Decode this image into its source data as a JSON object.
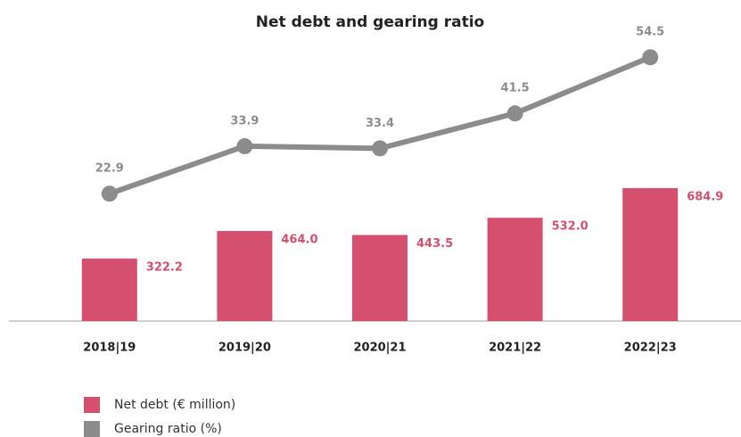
{
  "chart_data": {
    "type": "bar_line",
    "title": "Net debt and gearing ratio",
    "categories": [
      "2018|19",
      "2019|20",
      "2020|21",
      "2021|22",
      "2022|23"
    ],
    "series": [
      {
        "name": "Net debt (€ million)",
        "color": "#d4506e",
        "type": "bar",
        "values": [
          322.2,
          464.0,
          443.5,
          532.0,
          684.9
        ],
        "value_labels": [
          "322.2",
          "464.0",
          "443.5",
          "532.0",
          "684.9"
        ]
      },
      {
        "name": "Gearing ratio (%)",
        "color": "#8c8c8c",
        "type": "line",
        "axis": "y2",
        "values": [
          22.9,
          33.9,
          33.4,
          41.5,
          54.5
        ]
      }
    ],
    "ylim": [
      0,
      1470
    ],
    "y2lim": [
      -6.6,
      59.5
    ],
    "legend": "bottom-left"
  }
}
